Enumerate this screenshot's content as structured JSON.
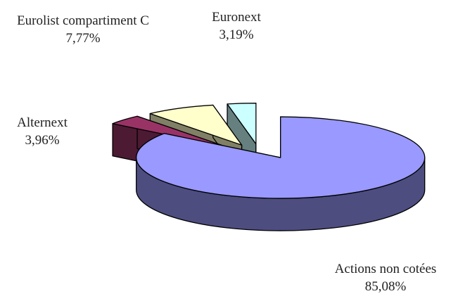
{
  "chart_data": {
    "type": "pie",
    "categories": [
      "Actions non cotées",
      "Alternext",
      "Eurolist compartiment C",
      "Euronext"
    ],
    "values": [
      85.08,
      3.96,
      7.77,
      3.19
    ],
    "value_labels": [
      "85,08%",
      "3,96%",
      "7,77%",
      "3,19%"
    ],
    "colors": [
      "#9999ff",
      "#993366",
      "#ffffcc",
      "#ccffff"
    ]
  }
}
